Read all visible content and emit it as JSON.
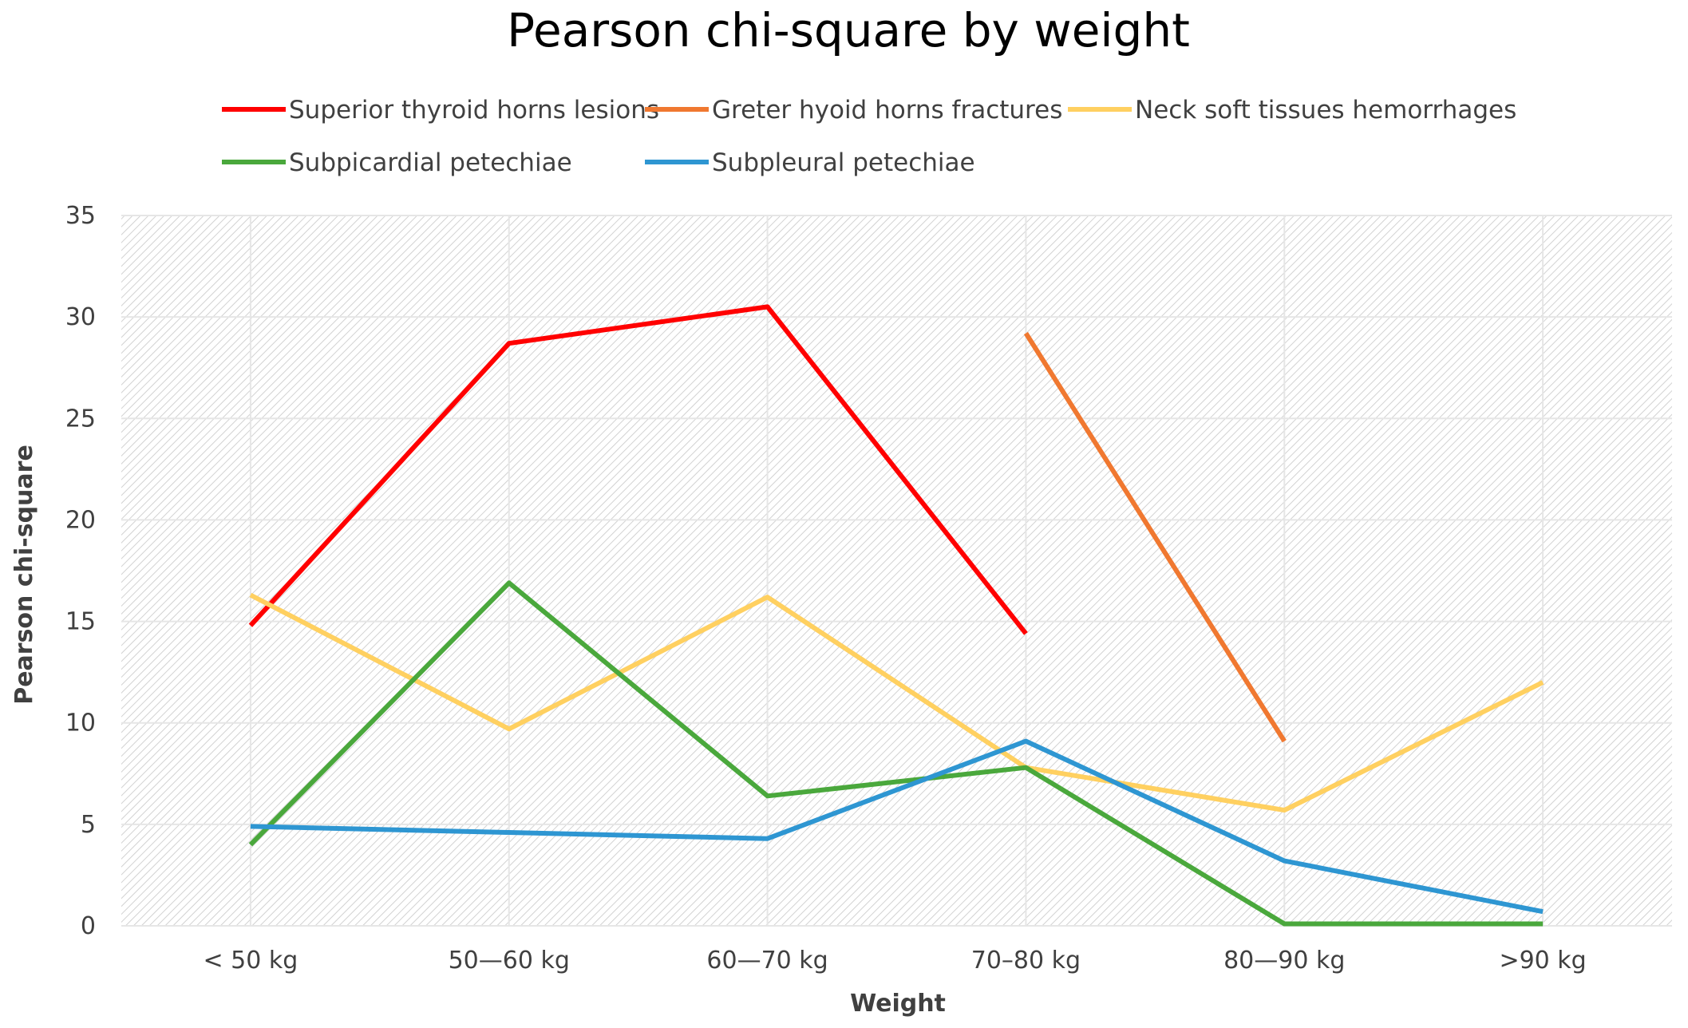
{
  "chart_data": {
    "type": "line",
    "title": "Pearson chi-square by weight",
    "xlabel": "Weight",
    "ylabel": "Pearson chi-square",
    "categories": [
      "< 50 kg",
      "50—60 kg",
      "60—70 kg",
      "70–80 kg",
      "80—90 kg",
      ">90 kg"
    ],
    "ylim": [
      0,
      35
    ],
    "yticks": [
      0,
      5,
      10,
      15,
      20,
      25,
      30,
      35
    ],
    "grid": true,
    "legend_position": "top",
    "series": [
      {
        "name": "Superior thyroid horns lesions",
        "color": "#ff0000",
        "values": [
          14.8,
          28.7,
          30.5,
          14.4,
          null,
          null
        ]
      },
      {
        "name": "Greter hyoid horns fractures",
        "color": "#f07830",
        "values": [
          null,
          null,
          null,
          29.2,
          9.1,
          null
        ]
      },
      {
        "name": "Neck soft tissues hemorrhages",
        "color": "#ffd060",
        "values": [
          16.3,
          9.7,
          16.2,
          7.8,
          5.7,
          12.0
        ]
      },
      {
        "name": "Subpicardial petechiae",
        "color": "#4aa83c",
        "values": [
          4.0,
          16.9,
          6.4,
          7.8,
          0.1,
          0.1
        ]
      },
      {
        "name": "Subpleural petechiae",
        "color": "#2e96d2",
        "values": [
          4.9,
          4.6,
          4.3,
          9.1,
          3.2,
          0.7
        ]
      }
    ]
  }
}
